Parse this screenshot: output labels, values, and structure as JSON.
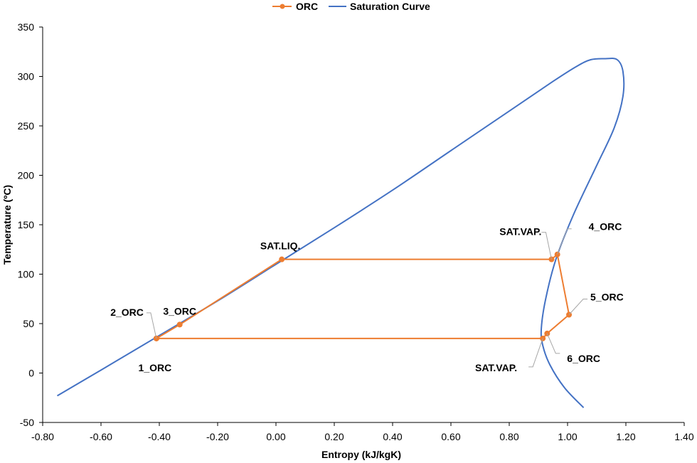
{
  "chart_data": {
    "type": "scatter",
    "xlabel": "Entropy (kJ/kgK)",
    "ylabel": "Temperature (ºC)",
    "xlim": [
      -0.8,
      1.4
    ],
    "ylim": [
      -50,
      350
    ],
    "x_ticks": [
      "-0.80",
      "-0.60",
      "-0.40",
      "-0.20",
      "0.00",
      "0.20",
      "0.40",
      "0.60",
      "0.80",
      "1.00",
      "1.20",
      "1.40"
    ],
    "y_ticks": [
      "-50",
      "0",
      "50",
      "100",
      "150",
      "200",
      "250",
      "300",
      "350"
    ],
    "grid": false,
    "legend_position": "top",
    "series": [
      {
        "name": "ORC",
        "color": "#ED7D31",
        "marker": "circle",
        "points": [
          {
            "x": -0.41,
            "y": 35
          },
          {
            "x": -0.41,
            "y": 35
          },
          {
            "x": -0.33,
            "y": 49
          },
          {
            "x": 0.02,
            "y": 115
          },
          {
            "x": 0.945,
            "y": 115
          },
          {
            "x": 0.965,
            "y": 120
          },
          {
            "x": 1.005,
            "y": 59
          },
          {
            "x": 0.93,
            "y": 40
          },
          {
            "x": 0.915,
            "y": 35
          },
          {
            "x": -0.41,
            "y": 35
          }
        ]
      },
      {
        "name": "Saturation Curve",
        "color": "#4472C4",
        "marker": "none",
        "points": [
          {
            "x": -0.75,
            "y": -23
          },
          {
            "x": -0.6,
            "y": 3
          },
          {
            "x": -0.4,
            "y": 38
          },
          {
            "x": -0.2,
            "y": 73
          },
          {
            "x": 0.0,
            "y": 110
          },
          {
            "x": 0.2,
            "y": 147
          },
          {
            "x": 0.4,
            "y": 185
          },
          {
            "x": 0.6,
            "y": 225
          },
          {
            "x": 0.8,
            "y": 265
          },
          {
            "x": 0.95,
            "y": 295
          },
          {
            "x": 1.03,
            "y": 310
          },
          {
            "x": 1.08,
            "y": 317
          },
          {
            "x": 1.13,
            "y": 318
          },
          {
            "x": 1.17,
            "y": 317
          },
          {
            "x": 1.19,
            "y": 305
          },
          {
            "x": 1.19,
            "y": 280
          },
          {
            "x": 1.16,
            "y": 248
          },
          {
            "x": 1.1,
            "y": 210
          },
          {
            "x": 1.02,
            "y": 160
          },
          {
            "x": 0.96,
            "y": 115
          },
          {
            "x": 0.925,
            "y": 75
          },
          {
            "x": 0.91,
            "y": 45
          },
          {
            "x": 0.915,
            "y": 28
          },
          {
            "x": 0.94,
            "y": 8
          },
          {
            "x": 0.99,
            "y": -15
          },
          {
            "x": 1.055,
            "y": -35
          }
        ]
      }
    ],
    "annotations": [
      {
        "text": "1_ORC",
        "x": -0.41,
        "y": 35,
        "pos": "below"
      },
      {
        "text": "2_ORC",
        "x": -0.41,
        "y": 35,
        "pos": "upper-left"
      },
      {
        "text": "3_ORC",
        "x": -0.33,
        "y": 49,
        "pos": "above-right"
      },
      {
        "text": "SAT.LIQ.",
        "x": 0.02,
        "y": 115,
        "pos": "above-left"
      },
      {
        "text": "SAT.VAP.",
        "x": 0.945,
        "y": 115,
        "pos": "upper-left"
      },
      {
        "text": "4_ORC",
        "x": 0.965,
        "y": 120,
        "pos": "upper-right"
      },
      {
        "text": "5_ORC",
        "x": 1.005,
        "y": 59,
        "pos": "upper-right"
      },
      {
        "text": "6_ORC",
        "x": 0.93,
        "y": 40,
        "pos": "lower-right"
      },
      {
        "text": "SAT.VAP.",
        "x": 0.915,
        "y": 35,
        "pos": "lower-left"
      }
    ]
  }
}
